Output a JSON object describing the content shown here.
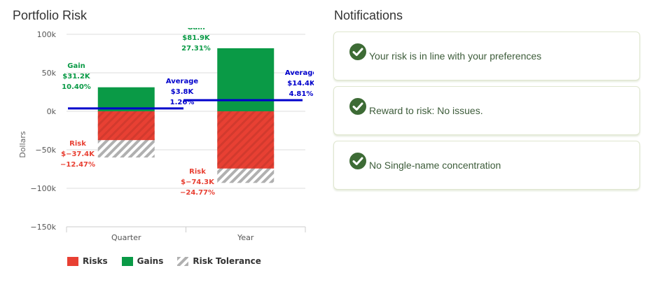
{
  "risk_panel": {
    "title": "Portfolio Risk"
  },
  "notifications_panel": {
    "title": "Notifications",
    "items": [
      {
        "icon": "check-circle-icon",
        "text": "Your risk is in line with your preferences"
      },
      {
        "icon": "check-circle-icon",
        "text": "Reward to risk: No issues."
      },
      {
        "icon": "check-circle-icon",
        "text": "No Single-name concentration"
      }
    ]
  },
  "colors": {
    "risk": "#e84033",
    "gain": "#0a9a46",
    "tolerance": "#b0b0b0",
    "average": "#0000cc",
    "check": "#3d6b35"
  },
  "chart_data": {
    "type": "bar",
    "categories": [
      "Quarter",
      "Year"
    ],
    "ylabel": "Dollars",
    "ylim": [
      -150000,
      100000
    ],
    "yticks": [
      {
        "value": 100000,
        "label": "100k"
      },
      {
        "value": 50000,
        "label": "50k"
      },
      {
        "value": 0,
        "label": "0k"
      },
      {
        "value": -50000,
        "label": "−50k"
      },
      {
        "value": -100000,
        "label": "−100k"
      },
      {
        "value": -150000,
        "label": "−150k"
      }
    ],
    "grid": true,
    "legend": {
      "position": "bottom-left",
      "items": [
        "Risks",
        "Gains",
        "Risk Tolerance"
      ]
    },
    "series": [
      {
        "name": "Gains",
        "values": [
          31200,
          81900
        ]
      },
      {
        "name": "Risks",
        "values": [
          -37400,
          -74300
        ]
      },
      {
        "name": "Risk Tolerance",
        "values": [
          -60000,
          -93000
        ]
      },
      {
        "name": "Average",
        "values": [
          3800,
          14400
        ]
      }
    ],
    "annotations": [
      {
        "category": 0,
        "kind": "gain",
        "lines": [
          "Gain",
          "$31.2K",
          "10.40%"
        ]
      },
      {
        "category": 1,
        "kind": "gain",
        "lines": [
          "Gain",
          "$81.9K",
          "27.31%"
        ]
      },
      {
        "category": 0,
        "kind": "risk",
        "lines": [
          "Risk",
          "$−37.4K",
          "−12.47%"
        ]
      },
      {
        "category": 1,
        "kind": "risk",
        "lines": [
          "Risk",
          "$−74.3K",
          "−24.77%"
        ]
      },
      {
        "category": 0,
        "kind": "average",
        "lines": [
          "Average",
          "$3.8K",
          "1.26%"
        ]
      },
      {
        "category": 1,
        "kind": "average",
        "lines": [
          "Average",
          "$14.4K",
          "4.81%"
        ]
      }
    ]
  }
}
